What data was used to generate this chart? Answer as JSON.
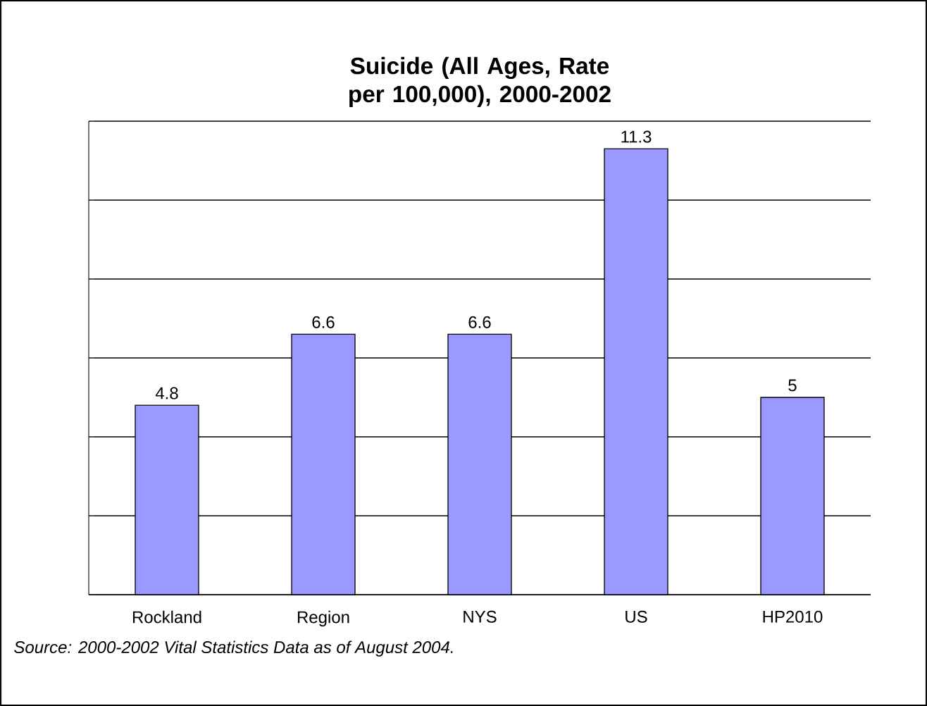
{
  "chart_data": {
    "type": "bar",
    "title": "Suicide (All Ages, Rate per 100,000), 2000-2002",
    "categories": [
      "Rockland",
      "Region",
      "NYS",
      "US",
      "HP2010"
    ],
    "values": [
      4.8,
      6.6,
      6.6,
      11.3,
      5
    ],
    "color": "#9999ff",
    "data_labels": true,
    "ylim": [
      0,
      12
    ],
    "yticks": [
      {
        "value": 0,
        "label": null
      },
      {
        "value": 2,
        "label": null
      },
      {
        "value": 4,
        "label": null
      },
      {
        "value": 6,
        "label": null
      },
      {
        "value": 8,
        "label": null
      },
      {
        "value": 10,
        "label": null
      },
      {
        "value": 12,
        "label": null
      }
    ],
    "grid": "y",
    "tick_labels": "x",
    "annotations": [
      "*Source: 2000-2002 Vital Statistics Data as of August 2004.*"
    ]
  }
}
